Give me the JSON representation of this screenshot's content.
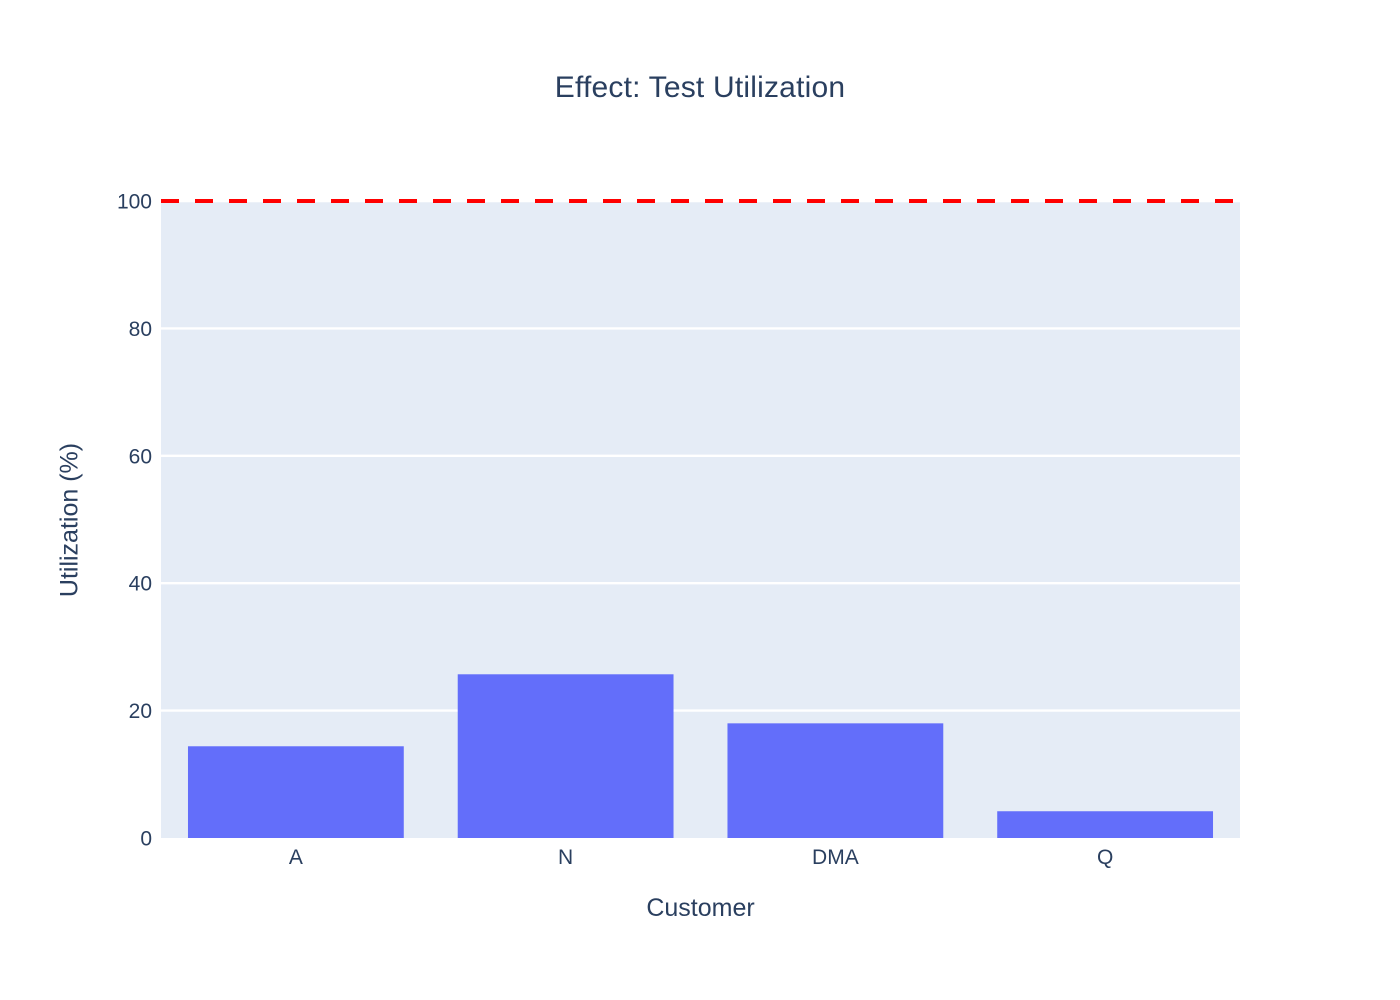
{
  "chart_data": {
    "type": "bar",
    "title": "Effect: Test Utilization",
    "xlabel": "Customer",
    "ylabel": "Utilization (%)",
    "categories": [
      "A",
      "N",
      "DMA",
      "Q"
    ],
    "values": [
      14.4,
      25.7,
      18.0,
      4.2
    ],
    "ylim": [
      0,
      100
    ],
    "yticks": [
      0,
      20,
      40,
      60,
      80,
      100
    ],
    "grid": true,
    "legend": false,
    "reference_line": {
      "y": 100,
      "style": "dashed"
    },
    "colors": {
      "bar": "#636EFA",
      "plot_background": "#E5ECF6",
      "gridline": "#FFFFFF",
      "text": "#2A3F5F",
      "reference": "#FF0000"
    }
  }
}
